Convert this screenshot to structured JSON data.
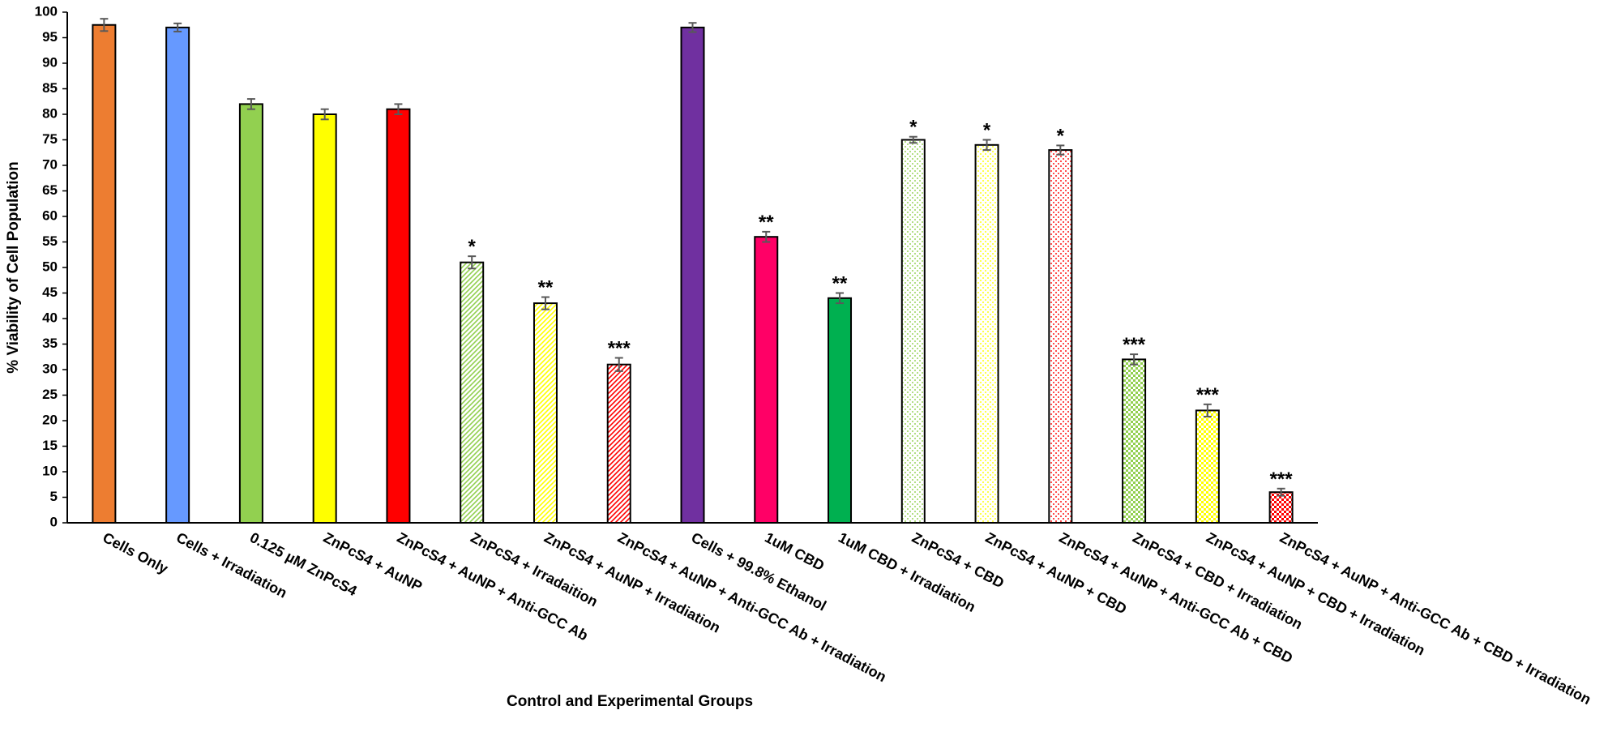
{
  "chart_data": {
    "type": "bar",
    "y_label": "% Viability of Cell Population",
    "x_label": "Control and Experimental Groups",
    "categories": [
      "Cells Only",
      "Cells + Irradiation",
      "0.125 µM ZnPcS4",
      "ZnPcS4 + AuNP",
      "ZnPcS4 + AuNP + Anti-GCC Ab",
      "ZnPcS4 + Irradaition",
      "ZnPcS4 + AuNP + Irradiation",
      "ZnPcS4 + AuNP + Anti-GCC Ab + Irradiation",
      "Cells + 99.8% Ethanol",
      "1uM CBD",
      "1uM CBD + Irradiation",
      "ZnPcS4 + CBD",
      "ZnPcS4 + AuNP + CBD",
      "ZnPcS4 + AuNP + Anti-GCC Ab + CBD",
      "ZnPcS4 + CBD + Irradiation",
      "ZnPcS4 + AuNP + CBD + Irradiation",
      "ZnPcS4 + AuNP + Anti-GCC Ab + CBD + Irradiation"
    ],
    "values": [
      97.5,
      97,
      82,
      80,
      81,
      51,
      43,
      31,
      97,
      56,
      44,
      75,
      74,
      73,
      32,
      22,
      6
    ],
    "errors": [
      1.2,
      0.8,
      1,
      1,
      1,
      1.2,
      1.2,
      1.3,
      0.9,
      1,
      1,
      0.6,
      1,
      0.9,
      1,
      1.2,
      0.7
    ],
    "annotations": [
      null,
      null,
      null,
      null,
      null,
      "*",
      "**",
      "***",
      null,
      "**",
      "**",
      "*",
      "*",
      "*",
      "***",
      "***",
      "***"
    ],
    "colors": [
      "#ED7D31",
      "#6699FF",
      "#92D050",
      "#FFFF00",
      "#FF0000",
      "#92D050",
      "#FFFF00",
      "#FF0000",
      "#7030A0",
      "#FF0066",
      "#00B050",
      "#92D050",
      "#FFFF00",
      "#FF0000",
      "#92D050",
      "#FFFF00",
      "#FF0000"
    ],
    "patterns": [
      "solid",
      "solid",
      "solid",
      "solid",
      "solid",
      "hatch",
      "hatch",
      "hatch",
      "solid",
      "solid",
      "solid",
      "dots",
      "dots",
      "dots",
      "checker",
      "checker",
      "checker"
    ],
    "ylim": [
      0,
      100
    ],
    "yticks": [
      0,
      5,
      10,
      15,
      20,
      25,
      30,
      35,
      40,
      45,
      50,
      55,
      60,
      65,
      70,
      75,
      80,
      85,
      90,
      95,
      100
    ]
  }
}
